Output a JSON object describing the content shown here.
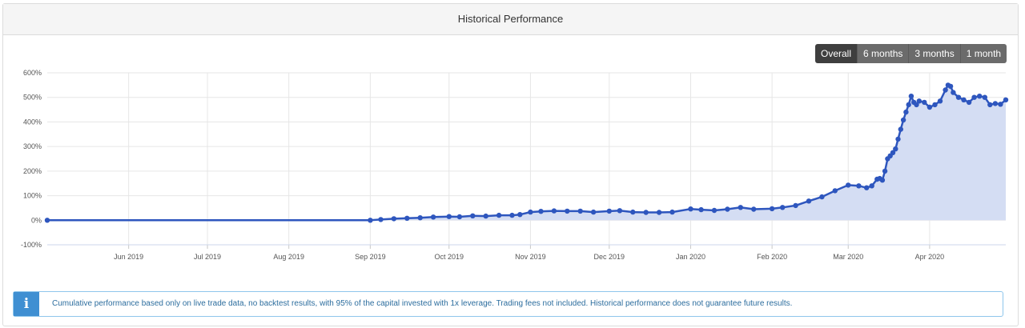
{
  "panel": {
    "title": "Historical Performance"
  },
  "range_buttons": [
    {
      "label": "Overall",
      "active": true
    },
    {
      "label": "6 months",
      "active": false
    },
    {
      "label": "3 months",
      "active": false
    },
    {
      "label": "1 month",
      "active": false
    }
  ],
  "info": {
    "icon": "info-icon",
    "text": "Cumulative performance based only on live trade data, no backtest results, with 95% of the capital invested with 1x leverage. Trading fees not included. Historical performance does not guarantee future results."
  },
  "colors": {
    "line": "#2e56be",
    "fill": "#d4ddf3",
    "grid": "#e6e6e6",
    "axis_text": "#555555",
    "info_accent": "#3f8fd2"
  },
  "chart_data": {
    "type": "area",
    "title": "Historical Performance",
    "xlabel": "",
    "ylabel": "",
    "y_unit": "%",
    "ylim": [
      -100,
      600
    ],
    "yticks": [
      -100,
      0,
      100,
      200,
      300,
      400,
      500,
      600
    ],
    "ytick_labels": [
      "-100%",
      "0%",
      "100%",
      "200%",
      "300%",
      "400%",
      "500%",
      "600%"
    ],
    "xlim": [
      "2019-05-01",
      "2020-04-30"
    ],
    "xtick_labels": [
      "Jun 2019",
      "Jul 2019",
      "Aug 2019",
      "Sep 2019",
      "Oct 2019",
      "Nov 2019",
      "Dec 2019",
      "Jan 2020",
      "Feb 2020",
      "Mar 2020",
      "Apr 2020"
    ],
    "xtick_dates": [
      "2019-06-01",
      "2019-07-01",
      "2019-08-01",
      "2019-09-01",
      "2019-10-01",
      "2019-11-01",
      "2019-12-01",
      "2020-01-01",
      "2020-02-01",
      "2020-03-01",
      "2020-04-01"
    ],
    "grid": true,
    "series": [
      {
        "x": [
          "2019-05-01",
          "2019-09-01",
          "2019-09-05",
          "2019-09-10",
          "2019-09-15",
          "2019-09-20",
          "2019-09-25",
          "2019-10-01",
          "2019-10-05",
          "2019-10-10",
          "2019-10-15",
          "2019-10-20",
          "2019-10-25",
          "2019-10-28",
          "2019-11-01",
          "2019-11-05",
          "2019-11-10",
          "2019-11-15",
          "2019-11-20",
          "2019-11-25",
          "2019-12-01",
          "2019-12-05",
          "2019-12-10",
          "2019-12-15",
          "2019-12-20",
          "2019-12-25",
          "2020-01-01",
          "2020-01-05",
          "2020-01-10",
          "2020-01-15",
          "2020-01-20",
          "2020-01-25",
          "2020-02-01",
          "2020-02-05",
          "2020-02-10",
          "2020-02-15",
          "2020-02-20",
          "2020-02-25",
          "2020-03-01",
          "2020-03-05",
          "2020-03-08",
          "2020-03-10",
          "2020-03-12",
          "2020-03-13",
          "2020-03-14",
          "2020-03-15",
          "2020-03-16",
          "2020-03-17",
          "2020-03-18",
          "2020-03-19",
          "2020-03-20",
          "2020-03-21",
          "2020-03-22",
          "2020-03-23",
          "2020-03-24",
          "2020-03-25",
          "2020-03-26",
          "2020-03-27",
          "2020-03-28",
          "2020-03-30",
          "2020-04-01",
          "2020-04-03",
          "2020-04-05",
          "2020-04-07",
          "2020-04-08",
          "2020-04-09",
          "2020-04-10",
          "2020-04-12",
          "2020-04-14",
          "2020-04-16",
          "2020-04-18",
          "2020-04-20",
          "2020-04-22",
          "2020-04-24",
          "2020-04-26",
          "2020-04-28",
          "2020-04-30"
        ],
        "values": [
          0,
          0,
          3,
          6,
          8,
          10,
          13,
          15,
          14,
          18,
          17,
          20,
          20,
          23,
          33,
          36,
          38,
          37,
          37,
          33,
          37,
          39,
          33,
          32,
          32,
          33,
          46,
          43,
          40,
          45,
          52,
          45,
          47,
          52,
          60,
          78,
          95,
          120,
          143,
          140,
          132,
          140,
          167,
          170,
          163,
          200,
          250,
          262,
          275,
          290,
          330,
          370,
          408,
          440,
          470,
          505,
          480,
          470,
          485,
          480,
          460,
          470,
          485,
          530,
          550,
          545,
          520,
          500,
          490,
          480,
          500,
          505,
          500,
          470,
          475,
          472,
          490
        ]
      }
    ]
  }
}
